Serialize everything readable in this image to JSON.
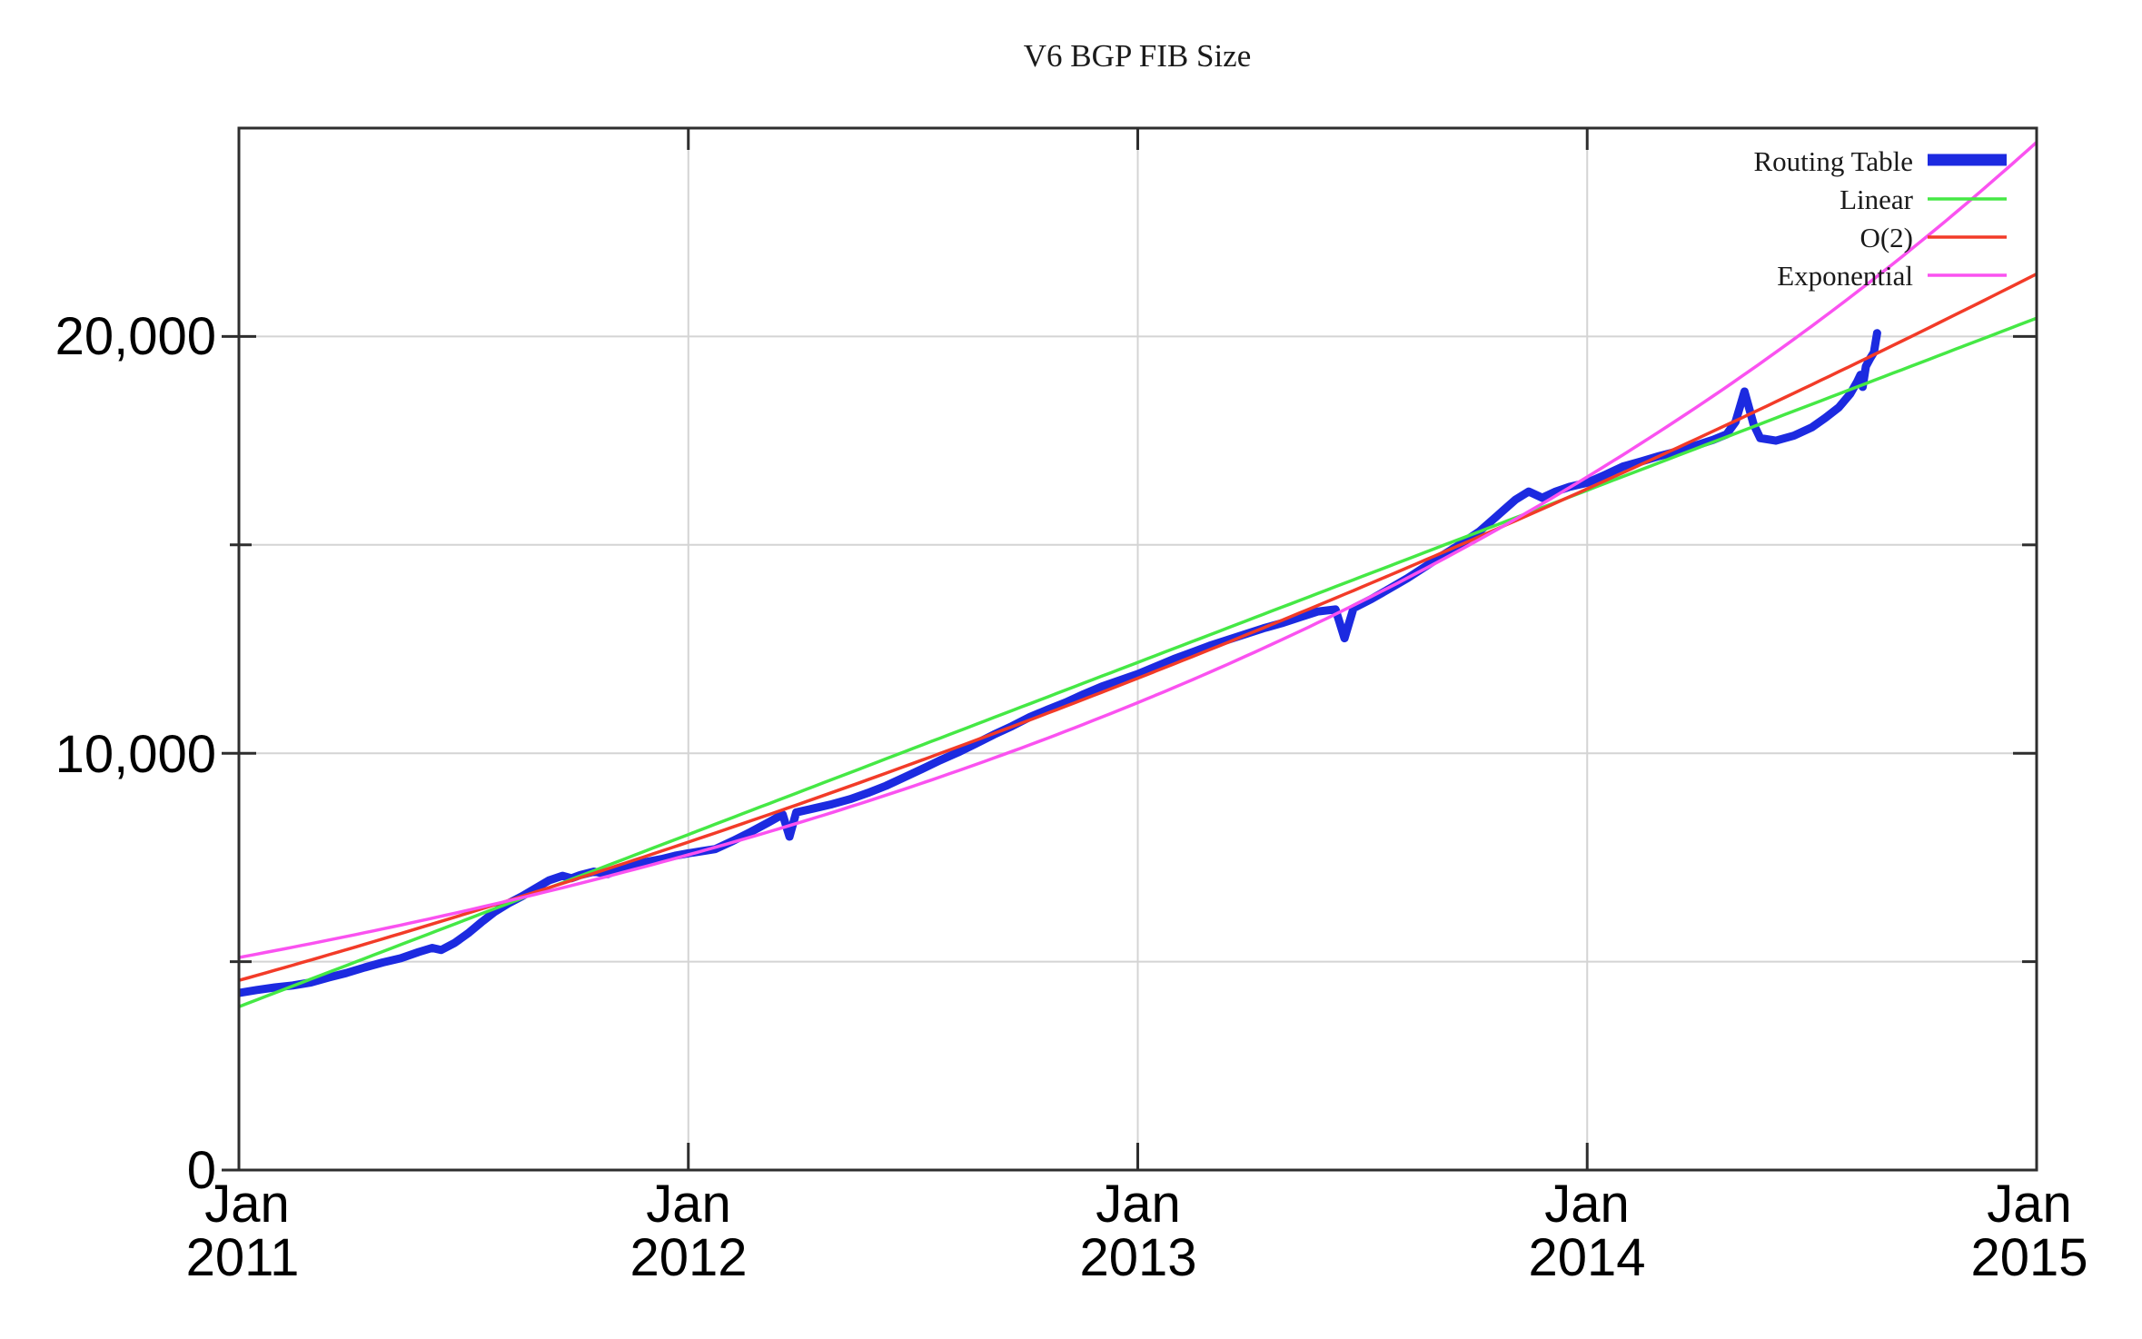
{
  "chart_data": {
    "type": "line",
    "title": "V6 BGP FIB Size",
    "x_axis": {
      "start_year": 2011,
      "end_year": 2015,
      "month_label": "Jan",
      "tick_years": [
        "2011",
        "2012",
        "2013",
        "2014",
        "2015"
      ],
      "grid_years": [
        2012,
        2013,
        2014
      ],
      "unit": "years"
    },
    "y_axis": {
      "min": 0,
      "max": 25000,
      "major_ticks": [
        {
          "value": 0,
          "label": "0"
        },
        {
          "value": 10000,
          "label": "10,000"
        },
        {
          "value": 20000,
          "label": "20,000"
        }
      ],
      "minor_ticks": [
        5000,
        15000
      ],
      "grid_values": [
        5000,
        10000,
        15000,
        20000
      ],
      "grid": true
    },
    "legend": {
      "position": "top-right",
      "entries": [
        "Routing Table",
        "Linear",
        "O(2)",
        "Exponential"
      ]
    },
    "series": [
      {
        "name": "Routing Table",
        "color": "#1c2ae0",
        "style": "data",
        "points_format": "[years_since_jan_2011, fib_entries]",
        "points": [
          [
            0.0,
            4250
          ],
          [
            0.04,
            4320
          ],
          [
            0.08,
            4380
          ],
          [
            0.12,
            4430
          ],
          [
            0.16,
            4500
          ],
          [
            0.2,
            4620
          ],
          [
            0.24,
            4730
          ],
          [
            0.28,
            4860
          ],
          [
            0.32,
            4980
          ],
          [
            0.36,
            5080
          ],
          [
            0.4,
            5230
          ],
          [
            0.43,
            5330
          ],
          [
            0.45,
            5280
          ],
          [
            0.48,
            5450
          ],
          [
            0.51,
            5680
          ],
          [
            0.54,
            5950
          ],
          [
            0.57,
            6200
          ],
          [
            0.6,
            6400
          ],
          [
            0.63,
            6570
          ],
          [
            0.66,
            6760
          ],
          [
            0.69,
            6950
          ],
          [
            0.72,
            7060
          ],
          [
            0.74,
            7000
          ],
          [
            0.76,
            7080
          ],
          [
            0.79,
            7160
          ],
          [
            0.82,
            7100
          ],
          [
            0.85,
            7230
          ],
          [
            0.88,
            7330
          ],
          [
            0.91,
            7400
          ],
          [
            0.94,
            7460
          ],
          [
            0.97,
            7540
          ],
          [
            1.0,
            7600
          ],
          [
            1.03,
            7650
          ],
          [
            1.06,
            7700
          ],
          [
            1.1,
            7900
          ],
          [
            1.14,
            8120
          ],
          [
            1.18,
            8350
          ],
          [
            1.21,
            8530
          ],
          [
            1.225,
            8000
          ],
          [
            1.24,
            8580
          ],
          [
            1.28,
            8680
          ],
          [
            1.32,
            8780
          ],
          [
            1.36,
            8900
          ],
          [
            1.4,
            9050
          ],
          [
            1.44,
            9220
          ],
          [
            1.48,
            9420
          ],
          [
            1.52,
            9620
          ],
          [
            1.56,
            9830
          ],
          [
            1.6,
            10020
          ],
          [
            1.64,
            10230
          ],
          [
            1.68,
            10450
          ],
          [
            1.72,
            10650
          ],
          [
            1.76,
            10870
          ],
          [
            1.8,
            11050
          ],
          [
            1.84,
            11220
          ],
          [
            1.88,
            11420
          ],
          [
            1.92,
            11600
          ],
          [
            1.96,
            11750
          ],
          [
            2.0,
            11900
          ],
          [
            2.04,
            12080
          ],
          [
            2.08,
            12260
          ],
          [
            2.12,
            12420
          ],
          [
            2.16,
            12580
          ],
          [
            2.2,
            12720
          ],
          [
            2.24,
            12860
          ],
          [
            2.28,
            13000
          ],
          [
            2.32,
            13120
          ],
          [
            2.36,
            13260
          ],
          [
            2.4,
            13400
          ],
          [
            2.44,
            13450
          ],
          [
            2.46,
            12760
          ],
          [
            2.48,
            13480
          ],
          [
            2.52,
            13700
          ],
          [
            2.56,
            13950
          ],
          [
            2.6,
            14200
          ],
          [
            2.64,
            14480
          ],
          [
            2.68,
            14760
          ],
          [
            2.72,
            15030
          ],
          [
            2.76,
            15320
          ],
          [
            2.8,
            15700
          ],
          [
            2.84,
            16080
          ],
          [
            2.87,
            16280
          ],
          [
            2.9,
            16130
          ],
          [
            2.93,
            16280
          ],
          [
            2.96,
            16390
          ],
          [
            3.0,
            16490
          ],
          [
            3.04,
            16680
          ],
          [
            3.08,
            16880
          ],
          [
            3.12,
            17000
          ],
          [
            3.16,
            17130
          ],
          [
            3.2,
            17240
          ],
          [
            3.24,
            17380
          ],
          [
            3.28,
            17520
          ],
          [
            3.31,
            17650
          ],
          [
            3.33,
            17950
          ],
          [
            3.35,
            18680
          ],
          [
            3.37,
            17900
          ],
          [
            3.385,
            17560
          ],
          [
            3.42,
            17500
          ],
          [
            3.46,
            17620
          ],
          [
            3.5,
            17820
          ],
          [
            3.53,
            18050
          ],
          [
            3.56,
            18300
          ],
          [
            3.585,
            18620
          ],
          [
            3.6,
            18900
          ],
          [
            3.608,
            19080
          ],
          [
            3.613,
            18790
          ],
          [
            3.62,
            19280
          ],
          [
            3.63,
            19480
          ],
          [
            3.638,
            19620
          ],
          [
            3.645,
            20080
          ]
        ]
      },
      {
        "name": "Linear",
        "color": "#45e845",
        "style": "fit",
        "model": {
          "kind": "linear",
          "value_at_2011": 3920,
          "slope_per_year": 4130
        },
        "value_at_2015": 20440
      },
      {
        "name": "O(2)",
        "color": "#f23b28",
        "style": "fit",
        "model": {
          "kind": "quadratic",
          "a": 4550,
          "b": 3012.5,
          "c": 306.25
        },
        "value_at_2015": 21500
      },
      {
        "name": "Exponential",
        "color": "#fa52f0",
        "style": "fit",
        "model": {
          "kind": "exponential",
          "value_at_2011": 5100,
          "rate_per_year": 0.394
        },
        "value_at_2015": 24650
      }
    ]
  }
}
